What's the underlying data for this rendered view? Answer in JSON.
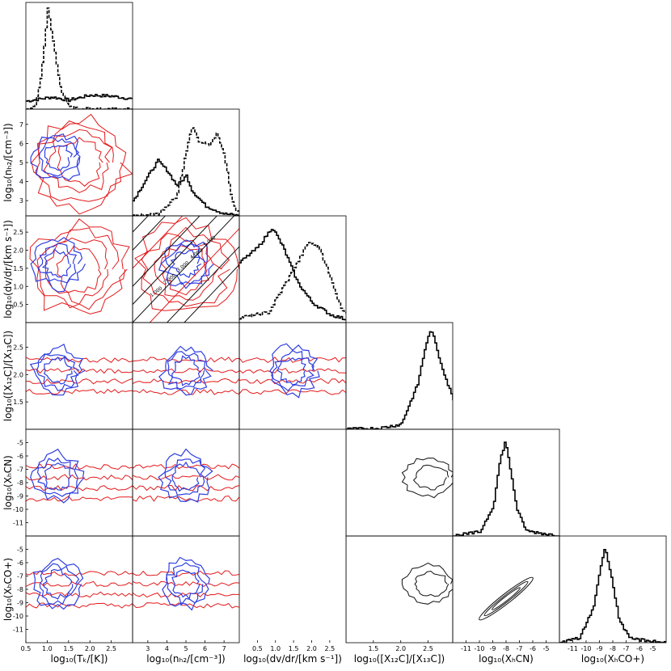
{
  "chart_data": {
    "type": "corner",
    "variables": [
      {
        "name": "Tk",
        "range": [
          0.5,
          3.0
        ],
        "ticks": [
          "0.5",
          "1.0",
          "1.5",
          "2.0",
          "2.5"
        ],
        "label": "log₁₀(Tₖ/[K])"
      },
      {
        "name": "nH2",
        "range": [
          2.2,
          7.8
        ],
        "ticks": [
          "3",
          "4",
          "5",
          "6",
          "7"
        ],
        "label": "log₁₀(nₕ₂/[cm⁻³])"
      },
      {
        "name": "dvdr",
        "range": [
          0.0,
          2.95
        ],
        "ticks": [
          "0.5",
          "1.0",
          "1.5",
          "2.0",
          "2.5"
        ],
        "label": "log₁₀(dv/dr/[km s⁻¹])"
      },
      {
        "name": "ratio",
        "range": [
          1.0,
          2.95
        ],
        "ticks": [
          "1.5",
          "2.0",
          "2.5"
        ],
        "label": "log₁₀([X₁₂C]/[X₁₃C])"
      },
      {
        "name": "XHCN",
        "range": [
          -12.0,
          -4.0
        ],
        "ticks": [
          "-11",
          "-10",
          "-9",
          "-8",
          "-7",
          "-6",
          "-5"
        ],
        "label": "log₁₀(XₕCN)"
      },
      {
        "name": "XHCO",
        "range": [
          -12.0,
          -4.0
        ],
        "ticks": [
          "-11",
          "-10",
          "-9",
          "-8",
          "-7",
          "-6",
          "-5"
        ],
        "label": "log₁₀(XₕCO+)"
      }
    ],
    "ylabels": [
      "",
      "log₁₀(nₕ₂/[cm⁻³])",
      "log₁₀(dv/dr/[km s⁻¹])",
      "log₁₀([X₁₂C]/[X₁₃C])",
      "log₁₀(XₕCN)",
      "log₁₀(XₕCO+)"
    ],
    "yticks": {
      "nH2": [
        "3",
        "4",
        "5",
        "6",
        "7"
      ],
      "dvdr": [
        "0.5",
        "1.0",
        "1.5",
        "2.0",
        "2.5"
      ],
      "ratio": [
        "1.5",
        "2.0",
        "2.5"
      ],
      "XHCN": [
        "-11",
        "-10",
        "-9",
        "-8",
        "-7",
        "-6",
        "-5"
      ],
      "XHCO": [
        "-11",
        "-10",
        "-9",
        "-8",
        "-7",
        "-6",
        "-5"
      ]
    },
    "histograms": {
      "Tk": {
        "solid": [
          [
            0.5,
            0.08
          ],
          [
            0.8,
            0.1
          ],
          [
            1.1,
            0.12
          ],
          [
            1.5,
            0.09
          ],
          [
            2.0,
            0.14
          ],
          [
            2.5,
            0.13
          ],
          [
            3.0,
            0.1
          ]
        ],
        "dashed": [
          [
            0.5,
            0.0
          ],
          [
            0.7,
            0.02
          ],
          [
            0.85,
            0.35
          ],
          [
            1.0,
            1.0
          ],
          [
            1.15,
            0.6
          ],
          [
            1.3,
            0.2
          ],
          [
            1.5,
            0.03
          ],
          [
            1.7,
            0.0
          ]
        ]
      },
      "nH2": {
        "solid": [
          [
            2.2,
            0.15
          ],
          [
            3.0,
            0.4
          ],
          [
            3.5,
            0.55
          ],
          [
            4.0,
            0.45
          ],
          [
            4.5,
            0.3
          ],
          [
            5.0,
            0.4
          ],
          [
            5.3,
            0.25
          ],
          [
            6.0,
            0.1
          ],
          [
            7.0,
            0.02
          ],
          [
            7.8,
            0.0
          ]
        ],
        "dashed": [
          [
            2.2,
            0.0
          ],
          [
            3.5,
            0.02
          ],
          [
            4.5,
            0.2
          ],
          [
            5.0,
            0.65
          ],
          [
            5.3,
            0.9
          ],
          [
            5.6,
            0.75
          ],
          [
            6.2,
            0.7
          ],
          [
            6.6,
            0.82
          ],
          [
            7.0,
            0.6
          ],
          [
            7.4,
            0.15
          ],
          [
            7.8,
            0.0
          ]
        ]
      },
      "dvdr": {
        "solid": [
          [
            0.0,
            0.6
          ],
          [
            0.5,
            0.75
          ],
          [
            0.9,
            0.95
          ],
          [
            1.2,
            0.75
          ],
          [
            1.6,
            0.4
          ],
          [
            2.0,
            0.2
          ],
          [
            2.5,
            0.08
          ],
          [
            2.95,
            0.03
          ]
        ],
        "dashed": [
          [
            0.0,
            0.05
          ],
          [
            0.8,
            0.1
          ],
          [
            1.2,
            0.35
          ],
          [
            1.6,
            0.6
          ],
          [
            1.9,
            0.8
          ],
          [
            2.2,
            0.75
          ],
          [
            2.5,
            0.45
          ],
          [
            2.8,
            0.15
          ],
          [
            2.95,
            0.1
          ]
        ]
      },
      "ratio": {
        "solid": [
          [
            1.0,
            0.0
          ],
          [
            1.6,
            0.01
          ],
          [
            2.0,
            0.05
          ],
          [
            2.3,
            0.45
          ],
          [
            2.45,
            0.85
          ],
          [
            2.55,
            1.0
          ],
          [
            2.7,
            0.7
          ],
          [
            2.85,
            0.45
          ],
          [
            2.95,
            0.3
          ]
        ]
      },
      "XHCN": {
        "solid": [
          [
            -12.0,
            0.0
          ],
          [
            -10.0,
            0.04
          ],
          [
            -9.0,
            0.3
          ],
          [
            -8.5,
            0.75
          ],
          [
            -8.1,
            0.95
          ],
          [
            -7.7,
            0.65
          ],
          [
            -7.2,
            0.25
          ],
          [
            -6.5,
            0.05
          ],
          [
            -4.0,
            0.0
          ]
        ]
      },
      "XHCO": {
        "solid": [
          [
            -12.0,
            0.0
          ],
          [
            -10.5,
            0.05
          ],
          [
            -9.5,
            0.35
          ],
          [
            -8.9,
            0.8
          ],
          [
            -8.6,
            0.95
          ],
          [
            -8.2,
            0.7
          ],
          [
            -7.6,
            0.25
          ],
          [
            -6.8,
            0.04
          ],
          [
            -4.0,
            0.0
          ]
        ]
      }
    },
    "contour_labels": [
      "1.000",
      "2.000",
      "3.000",
      "4.000",
      "5.000"
    ],
    "contour_colors": {
      "red": "#e31a1c",
      "blue": "#2f3fe0",
      "black": "#111111"
    }
  }
}
